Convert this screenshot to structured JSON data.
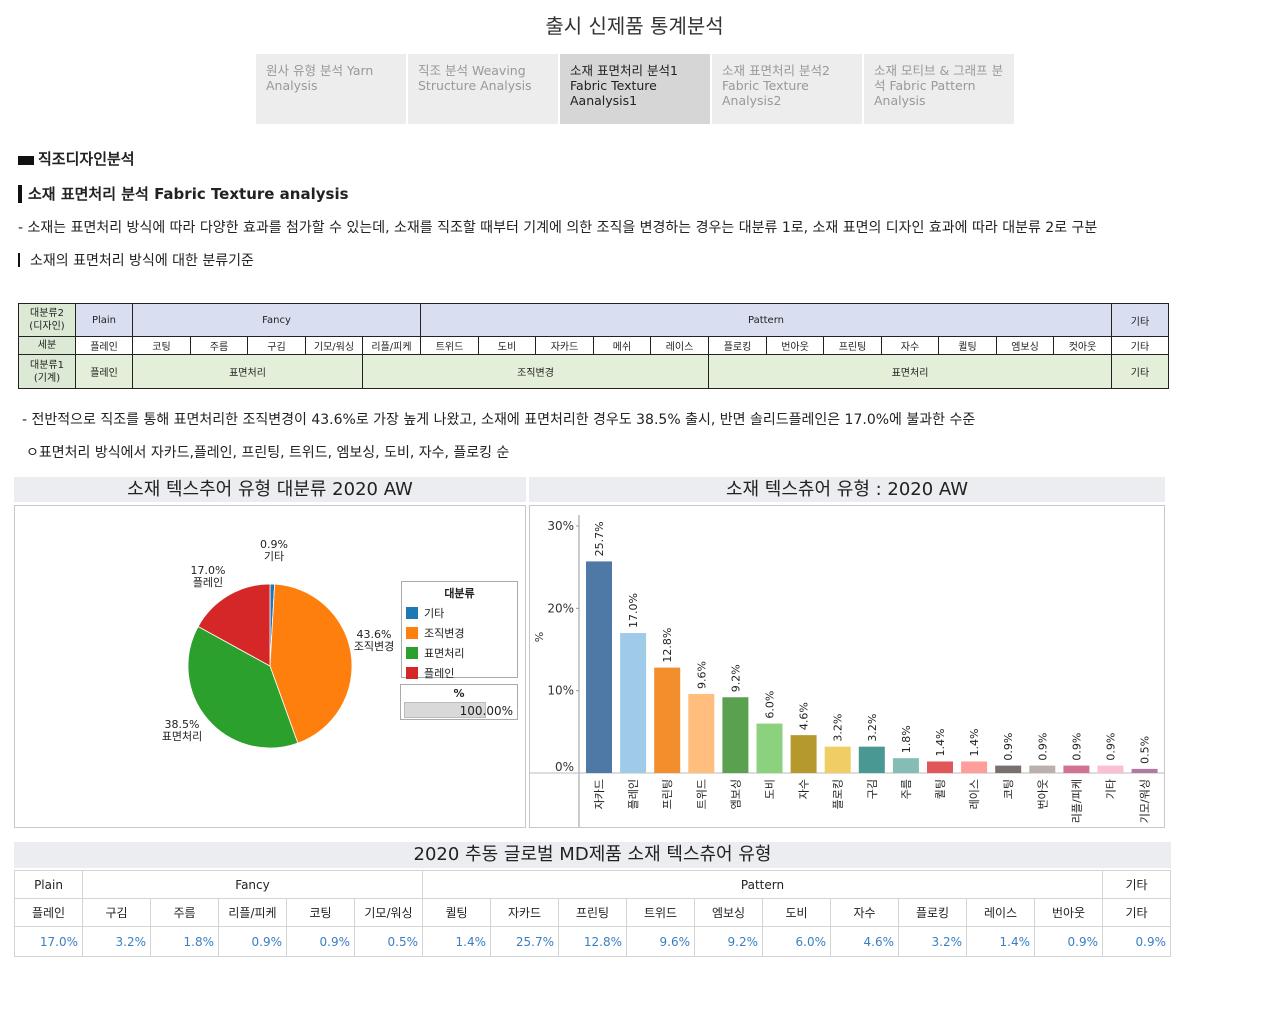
{
  "page_title": "출시 신제품 통계분석",
  "tabs": [
    {
      "label": "원사 유형 분석  Yarn Analysis",
      "active": false
    },
    {
      "label": "직조 분석 Weaving Structure Analysis",
      "active": false
    },
    {
      "label": "소재 표면처리 분석1 Fabric Texture Aanalysis1",
      "active": true
    },
    {
      "label": "소재 표면처리 분석2 Fabric Texture Analysis2",
      "active": false
    },
    {
      "label": "소재 모티브 & 그래프 분석 Fabric Pattern Analysis",
      "active": false
    }
  ],
  "section_heading": "직조디자인분석",
  "subsection_heading": "소재 표면처리 분석 Fabric Texture analysis",
  "description": "- 소재는 표면처리 방식에 따라 다양한 효과를 첨가할 수 있는데, 소재를 직조할 때부터 기계에 의한 조직을 변경하는 경우는 대분류 1로, 소재 표면의 디자인 효과에 따라 대분류 2로 구분",
  "criteria_label": "소재의 표면처리 방식에 대한 분류기준",
  "class_table": {
    "r1_label": "대분류2\n(디자인)",
    "r1": [
      "Plain",
      "Fancy",
      "Pattern",
      "기타"
    ],
    "r2_label": "세분",
    "r2": [
      "플레인",
      "코팅",
      "주름",
      "구김",
      "기모/워싱",
      "리플/피케",
      "트위드",
      "도비",
      "자카드",
      "메쉬",
      "레이스",
      "플로킹",
      "번아웃",
      "프린팅",
      "자수",
      "퀼팅",
      "엠보싱",
      "컷아웃",
      "기타"
    ],
    "r3_label": "대분류1\n(기계)",
    "r3": [
      "플레인",
      "표면처리",
      "조직변경",
      "표면처리",
      "기타"
    ]
  },
  "summary": "- 전반적으로 직조를 통해 표면처리한 조직변경이 43.6%로 가장 높게 나왔고, 소재에 표면처리한 경우도 38.5% 출시, 반면 솔리드플레인은 17.0%에 불과한 수준",
  "order_line": "ㅇ표면처리 방식에서 자카드,플레인, 프린팅, 트위드, 엠보싱, 도비, 자수, 플로킹 순",
  "pie_panel_title": "소재 텍스추어 유형 대분류 2020 AW",
  "bar_panel_title": "소재 텍스츄어 유형 : 2020 AW",
  "legend": {
    "title": "대분류",
    "pct_title": "%",
    "pct_value": "100.00%"
  },
  "colors": {
    "etc": "#1f77b4",
    "weave": "#ff7f0e",
    "surface": "#2ca02c",
    "plain": "#d62728"
  },
  "chart_data": [
    {
      "type": "pie",
      "slices": [
        {
          "label": "기타",
          "value": 0.9,
          "value_label": "0.9%",
          "color": "#1f77b4"
        },
        {
          "label": "조직변경",
          "value": 43.6,
          "value_label": "43.6%",
          "color": "#ff7f0e"
        },
        {
          "label": "표면처리",
          "value": 38.5,
          "value_label": "38.5%",
          "color": "#2ca02c"
        },
        {
          "label": "플레인",
          "value": 17.0,
          "value_label": "17.0%",
          "color": "#d62728"
        }
      ],
      "legend_position": "right"
    },
    {
      "type": "bar",
      "ylabel": "%",
      "ylim": [
        0,
        30
      ],
      "yticks": [
        "0%",
        "10%",
        "20%",
        "30%"
      ],
      "categories": [
        "자카드",
        "플레인",
        "프린팅",
        "트위드",
        "엠보싱",
        "도비",
        "자수",
        "플로킹",
        "구김",
        "주름",
        "퀼팅",
        "레이스",
        "코팅",
        "번아웃",
        "리플/피케",
        "기타",
        "기모/워싱"
      ],
      "values": [
        25.7,
        17.0,
        12.8,
        9.6,
        9.2,
        6.0,
        4.6,
        3.2,
        3.2,
        1.8,
        1.4,
        1.4,
        0.9,
        0.9,
        0.9,
        0.9,
        0.5
      ],
      "value_labels": [
        "25.7%",
        "17.0%",
        "12.8%",
        "9.6%",
        "9.2%",
        "6.0%",
        "4.6%",
        "3.2%",
        "3.2%",
        "1.8%",
        "1.4%",
        "1.4%",
        "0.9%",
        "0.9%",
        "0.9%",
        "0.9%",
        "0.5%"
      ],
      "colors": [
        "#4e79a7",
        "#a0cbe8",
        "#f28e2b",
        "#ffbe7d",
        "#59a14f",
        "#8cd17d",
        "#b6992d",
        "#f1ce63",
        "#499894",
        "#86bcb6",
        "#e15759",
        "#ff9d9a",
        "#79706e",
        "#bab0ac",
        "#d37295",
        "#fabfd2",
        "#b07aa1"
      ],
      "grid": false
    }
  ],
  "global_table": {
    "title": "2020 추동 글로벌 MD제품 소재 텍스츄어 유형",
    "groups": [
      "Plain",
      "Fancy",
      "Pattern",
      "기타"
    ],
    "items": [
      "플레인",
      "구김",
      "주름",
      "리플/피케",
      "코팅",
      "기모/워싱",
      "퀼팅",
      "자카드",
      "프린팅",
      "트위드",
      "엠보싱",
      "도비",
      "자수",
      "플로킹",
      "레이스",
      "번아웃",
      "기타"
    ],
    "values": [
      "17.0%",
      "3.2%",
      "1.8%",
      "0.9%",
      "0.9%",
      "0.5%",
      "1.4%",
      "25.7%",
      "12.8%",
      "9.6%",
      "9.2%",
      "6.0%",
      "4.6%",
      "3.2%",
      "1.4%",
      "0.9%",
      "0.9%"
    ]
  }
}
